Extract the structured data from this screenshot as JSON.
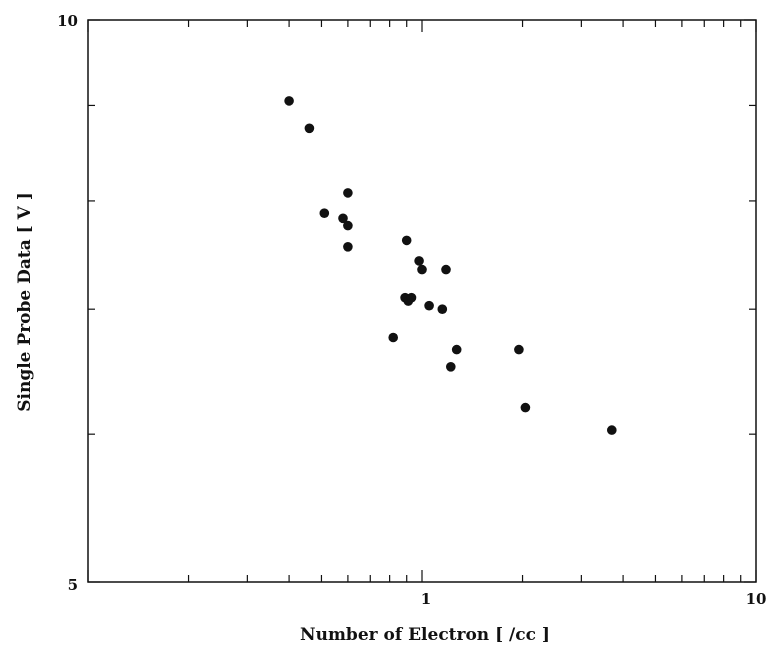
{
  "chart_data": {
    "type": "scatter",
    "title": "",
    "xlabel": "Number of Electron  [ /cc ]",
    "ylabel": "Single Probe Data  [ V ]",
    "xscale": "log",
    "yscale": "log",
    "xlim": [
      0.1,
      10
    ],
    "ylim": [
      5,
      10
    ],
    "grid": false,
    "legend": "none",
    "x_ticks": [
      {
        "value": 1,
        "label": "1"
      },
      {
        "value": 10,
        "label": "10"
      }
    ],
    "y_ticks": [
      {
        "value": 5,
        "label": "5"
      },
      {
        "value": 10,
        "label": "10"
      }
    ],
    "points": [
      {
        "x": 0.4,
        "y": 9.05
      },
      {
        "x": 0.46,
        "y": 8.75
      },
      {
        "x": 0.51,
        "y": 7.88
      },
      {
        "x": 0.58,
        "y": 7.83
      },
      {
        "x": 0.6,
        "y": 7.76
      },
      {
        "x": 0.6,
        "y": 8.08
      },
      {
        "x": 0.6,
        "y": 7.56
      },
      {
        "x": 0.9,
        "y": 7.62
      },
      {
        "x": 0.98,
        "y": 7.43
      },
      {
        "x": 1.0,
        "y": 7.35
      },
      {
        "x": 1.18,
        "y": 7.35
      },
      {
        "x": 0.89,
        "y": 7.1
      },
      {
        "x": 0.91,
        "y": 7.07
      },
      {
        "x": 0.93,
        "y": 7.1
      },
      {
        "x": 1.05,
        "y": 7.03
      },
      {
        "x": 1.15,
        "y": 7.0
      },
      {
        "x": 0.82,
        "y": 6.76
      },
      {
        "x": 1.27,
        "y": 6.66
      },
      {
        "x": 1.22,
        "y": 6.52
      },
      {
        "x": 1.95,
        "y": 6.66
      },
      {
        "x": 2.04,
        "y": 6.2
      },
      {
        "x": 3.7,
        "y": 6.03
      }
    ],
    "marker_color": "#111111"
  }
}
